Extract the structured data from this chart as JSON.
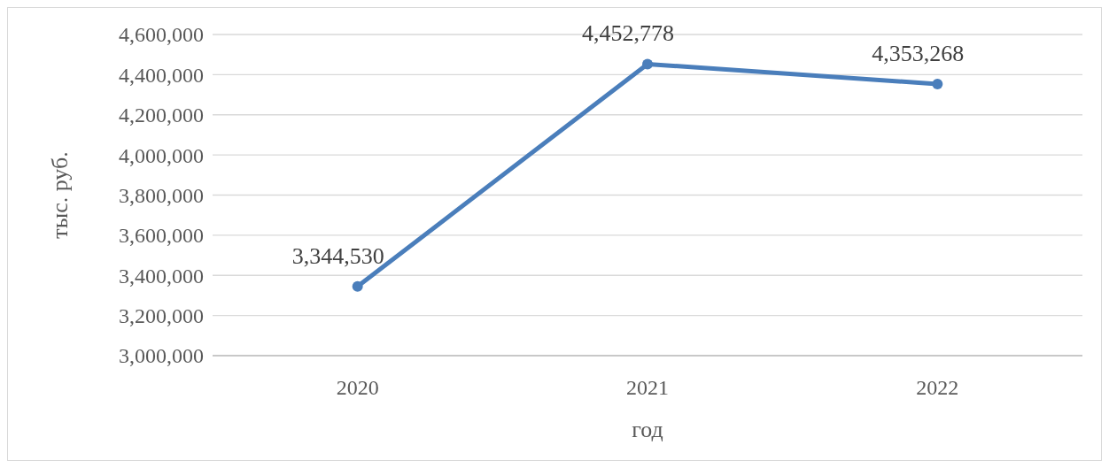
{
  "chart_data": {
    "type": "line",
    "xlabel": "год",
    "ylabel": "тыс. руб.",
    "categories": [
      "2020",
      "2021",
      "2022"
    ],
    "series": [
      {
        "color": "#4a7ebb",
        "values": [
          3344530,
          4452778,
          4353268
        ],
        "value_labels": [
          "3,344,530",
          "4,452,778",
          "4,353,268"
        ]
      }
    ],
    "ylim": [
      3000000,
      4600000
    ],
    "yticks": [
      {
        "value": 3000000,
        "label": "3,000,000"
      },
      {
        "value": 3200000,
        "label": "3,200,000"
      },
      {
        "value": 3400000,
        "label": "3,400,000"
      },
      {
        "value": 3600000,
        "label": "3,600,000"
      },
      {
        "value": 3800000,
        "label": "3,800,000"
      },
      {
        "value": 4000000,
        "label": "4,000,000"
      },
      {
        "value": 4200000,
        "label": "4,200,000"
      },
      {
        "value": 4400000,
        "label": "4,400,000"
      },
      {
        "value": 4600000,
        "label": "4,600,000"
      }
    ],
    "grid": "y",
    "marker": "circle"
  }
}
